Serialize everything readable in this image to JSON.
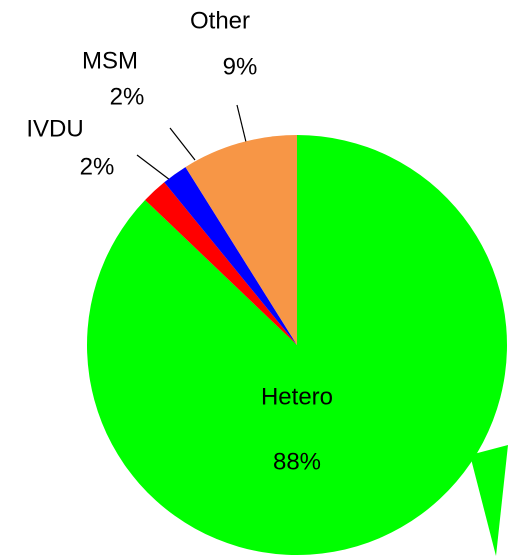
{
  "chart_data": {
    "type": "pie",
    "categories": [
      "Hetero",
      "IVDU",
      "MSM",
      "Other"
    ],
    "values": [
      88,
      2,
      2,
      9
    ],
    "value_labels": [
      "88%",
      "2%",
      "2%",
      "9%"
    ],
    "colors": [
      "#00ff00",
      "#ff0000",
      "#0000ff",
      "#f79646"
    ]
  }
}
